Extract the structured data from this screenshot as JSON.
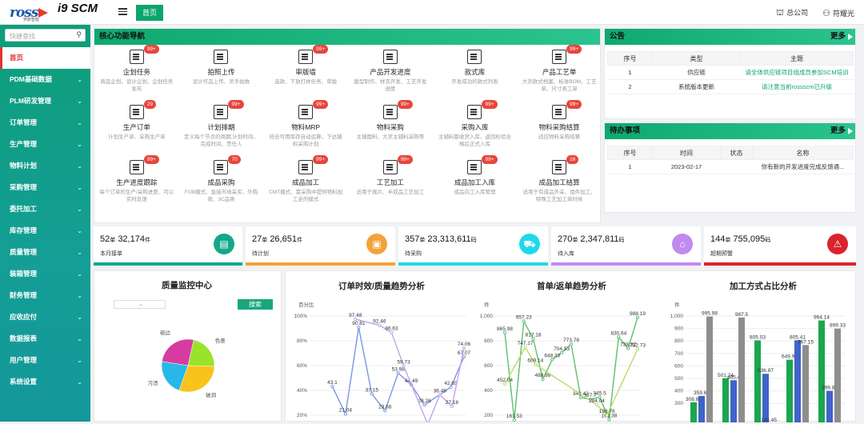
{
  "header": {
    "logo_text": "ross",
    "logo_sub": "罗斯智能",
    "product": "i9 SCM",
    "home_tab": "首页",
    "company": "总公司",
    "user": "符耀光"
  },
  "sidebar": {
    "search_placeholder": "快捷查找",
    "items": [
      {
        "label": "首页",
        "active": true
      },
      {
        "label": "PDM基础数据"
      },
      {
        "label": "PLM研发管理"
      },
      {
        "label": "订单管理"
      },
      {
        "label": "生产管理"
      },
      {
        "label": "物料计划"
      },
      {
        "label": "采购管理"
      },
      {
        "label": "委托加工"
      },
      {
        "label": "库存管理"
      },
      {
        "label": "质量管理"
      },
      {
        "label": "装箱管理"
      },
      {
        "label": "财务管理"
      },
      {
        "label": "应收应付"
      },
      {
        "label": "数据报表"
      },
      {
        "label": "用户管理"
      },
      {
        "label": "系统设置"
      }
    ]
  },
  "nav": {
    "title": "核心功能导航",
    "items": [
      {
        "t": "企划任务",
        "d": "商品企划、设计企划、企划任务发布",
        "b": "99+"
      },
      {
        "t": "拍照上传",
        "d": "设计作品上传、灵手拍数",
        "b": ""
      },
      {
        "t": "审版墙",
        "d": "选款、下放打样任务、审版",
        "b": "99+"
      },
      {
        "t": "产品开发进度",
        "d": "版型制作、样衣开发、工艺开发进度",
        "b": ""
      },
      {
        "t": "款式库",
        "d": "开发成功的款式列表",
        "b": ""
      },
      {
        "t": "产品工艺单",
        "d": "大货款式档案、标准BOM、工艺单、尺寸表工单",
        "b": "99+"
      },
      {
        "t": "生产订单",
        "d": "计划生产单、采购生产单",
        "b": "29"
      },
      {
        "t": "计划排期",
        "d": "定义每个节点的周期,计划时间、完成时间、责任人",
        "b": "99+"
      },
      {
        "t": "物料MRP",
        "d": "结合可用库存自动运算，下达辅料采购计划",
        "b": "99+"
      },
      {
        "t": "物料采购",
        "d": "主辅面料、大货主辅料采购等",
        "b": "99+"
      },
      {
        "t": "采购入库",
        "d": "主辅料都收货入库、返回检验合格后正式入库",
        "b": "99+"
      },
      {
        "t": "物料采购结算",
        "d": "适应物料采购结算",
        "b": "99+"
      },
      {
        "t": "生产进度跟踪",
        "d": "每个订单的生产/采购进度、可以实时反馈",
        "b": "99+"
      },
      {
        "t": "成品采购",
        "d": "FOB模式、直接市场采买、外购款、3C品类",
        "b": "70"
      },
      {
        "t": "成品加工",
        "d": "CMT模式、需采购中提供物料加工走的模式",
        "b": "99+"
      },
      {
        "t": "工艺加工",
        "d": "适用于裁片、半成品工艺加工",
        "b": "99+"
      },
      {
        "t": "成品加工入库",
        "d": "成品向工入库管理",
        "b": "99+"
      },
      {
        "t": "成品加工结算",
        "d": "适用于有成品外采、组件加工、特殊工艺加工单时候",
        "b": "16"
      }
    ]
  },
  "notice": {
    "title": "公告",
    "more": "更多",
    "cols": [
      "序号",
      "类型",
      "主题"
    ],
    "rows": [
      [
        "1",
        "供应链",
        "请全体供应链项目组成员参加SCM培训"
      ],
      [
        "2",
        "系统版本更新",
        "请注意当前rossscm已升级"
      ]
    ]
  },
  "todo": {
    "title": "待办事项",
    "more": "更多",
    "cols": [
      "序号",
      "时间",
      "状态",
      "名称"
    ],
    "rows": [
      [
        "1",
        "2023-02-17",
        "",
        "你有新的开发进度完成反馈通..."
      ]
    ]
  },
  "stats": [
    {
      "v": "52",
      "u1": "单",
      "v2": "32,174",
      "u2": "件",
      "l": "本月接单",
      "color": "#12a98a",
      "icon": "order-icon"
    },
    {
      "v": "27",
      "u1": "单",
      "v2": "26,651",
      "u2": "件",
      "l": "待计划",
      "color": "#f4a23a",
      "icon": "plan-icon"
    },
    {
      "v": "357",
      "u1": "单",
      "v2": "23,313,611",
      "u2": "码",
      "l": "待采购",
      "color": "#1fd9e8",
      "icon": "cart-icon"
    },
    {
      "v": "270",
      "u1": "单",
      "v2": "2,347,811",
      "u2": "码",
      "l": "待入库",
      "color": "#c18af0",
      "icon": "warehouse-icon"
    },
    {
      "v": "144",
      "u1": "单",
      "v2": "755,095",
      "u2": "码",
      "l": "超期预警",
      "color": "#d9232e",
      "icon": "alarm-icon"
    }
  ],
  "quality": {
    "title": "质量监控中心",
    "search": "搜索",
    "pie": [
      {
        "label": "污渍",
        "value": 22,
        "color": "#27b7e8"
      },
      {
        "label": "色差",
        "value": 22,
        "color": "#9be22a"
      },
      {
        "label": "破洞",
        "value": 30,
        "color": "#f9c31b"
      },
      {
        "label": "褪边",
        "value": 26,
        "color": "#d73aa0"
      }
    ]
  },
  "chart_data": [
    {
      "type": "line",
      "title": "订单时效/质量趋势分析",
      "ylabel": "百分比",
      "yticks": [
        "100%",
        "80%",
        "60%",
        "40%",
        "20%"
      ],
      "series": [
        {
          "name": "",
          "color": "#7b95e6",
          "values": [
            null,
            43.1,
            21.04,
            90.81,
            37.15,
            23.68,
            53.98,
            44.49,
            28.26,
            null,
            42.65,
            67.07
          ]
        },
        {
          "name": "",
          "color": "#c3a3ef",
          "values": [
            null,
            null,
            null,
            97.48,
            null,
            92.46,
            86.63,
            59.73,
            null,
            12.6,
            36.48,
            27.18,
            74.06
          ]
        }
      ]
    },
    {
      "type": "line",
      "title": "首单/返单趋势分析",
      "ylabel": "件",
      "yticks": [
        "1,000",
        "800",
        "600",
        "400",
        "200"
      ],
      "series": [
        {
          "name": "",
          "color": "#5fbf6e",
          "values": [
            865.98,
            161.53,
            957.23,
            817.18,
            488.98,
            648.33,
            704.53,
            773.78,
            343.42,
            327.7,
            345.5,
            164.38,
            830.64,
            738.32,
            988.19
          ]
        },
        {
          "name": "",
          "color": "#b7dc6b",
          "values": [
            452.04,
            null,
            747.17,
            609.14,
            null,
            null,
            null,
            null,
            null,
            284.04,
            198.76,
            null,
            null,
            732.73
          ]
        }
      ]
    },
    {
      "type": "bar",
      "title": "加工方式占比分析",
      "ylabel": "件",
      "yticks": [
        "1,000",
        "900",
        "800",
        "700",
        "600",
        "500",
        "400",
        "300"
      ],
      "series": [
        {
          "name": "",
          "color": "#1aa64e",
          "values": [
            308.85,
            501.24,
            805.03,
            649.95,
            964.14
          ]
        },
        {
          "name": "",
          "color": "#3f63c7",
          "values": [
            359.65,
            485.4,
            536.87,
            805.41,
            399.86
          ]
        },
        {
          "name": "",
          "color": "#8e8e8e",
          "values": [
            995.98,
            987.5,
            null,
            767.15,
            899.33
          ]
        }
      ],
      "extra_label": "144.45"
    }
  ]
}
